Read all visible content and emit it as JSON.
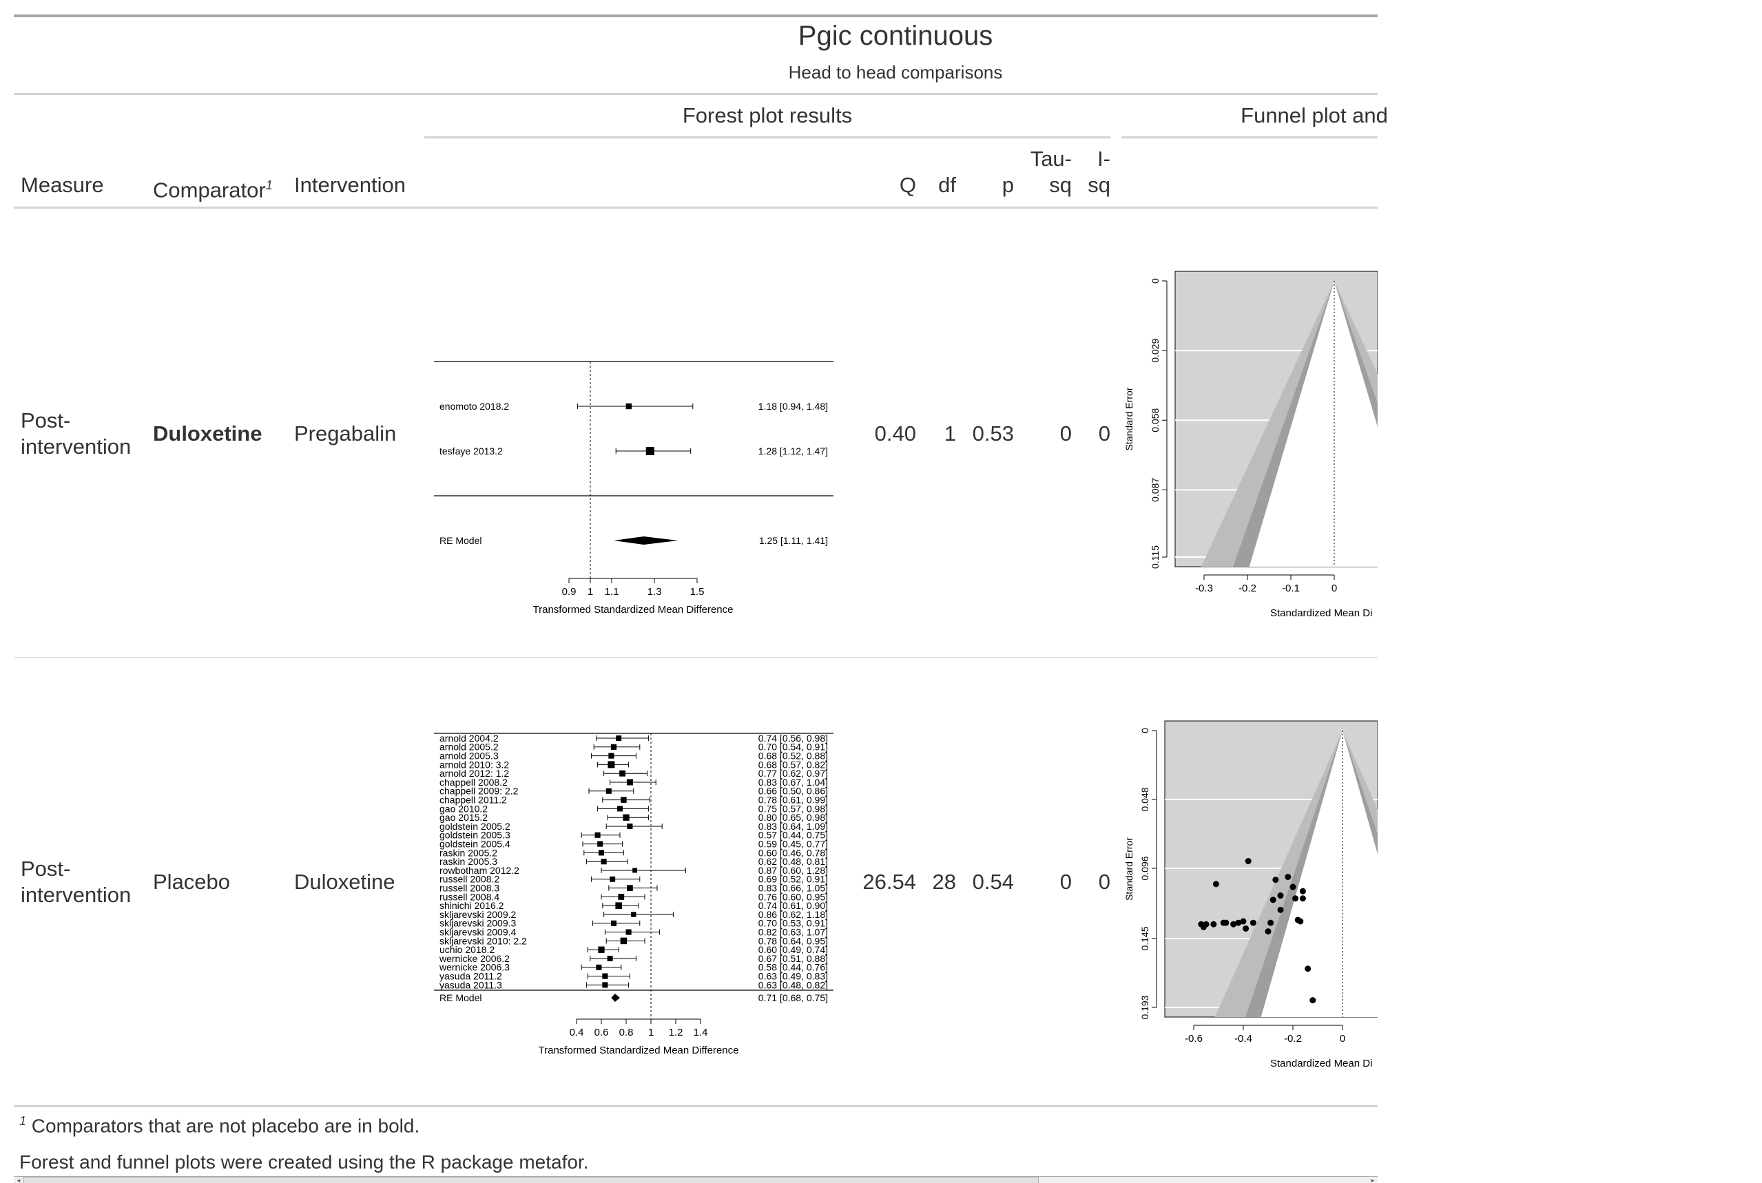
{
  "header": {
    "title": "Pgic continuous",
    "subtitle": "Head to head comparisons",
    "spanner_forest": "Forest plot results",
    "spanner_funnel": "Funnel plot and"
  },
  "columns": {
    "measure": "Measure",
    "comparator": "Comparator",
    "comparator_sup": "1",
    "intervention": "Intervention",
    "q": "Q",
    "df": "df",
    "p": "p",
    "tausq_1": "Tau-",
    "tausq_2": "sq",
    "isq_1": "I-",
    "isq_2": "sq"
  },
  "rows": [
    {
      "measure_1": "Post-",
      "measure_2": "intervention",
      "comparator": "Duloxetine",
      "intervention": "Pregabalin",
      "q": "0.40",
      "df": "1",
      "p": "0.53",
      "tausq": "0",
      "isq": "0"
    },
    {
      "measure_1": "Post-",
      "measure_2": "intervention",
      "comparator": "Placebo",
      "intervention": "Duloxetine",
      "q": "26.54",
      "df": "28",
      "p": "0.54",
      "tausq": "0",
      "isq": "0"
    }
  ],
  "footnotes": {
    "note1_sup": "1",
    "note1": "Comparators that are not placebo are in bold.",
    "note2": "Forest and funnel plots were created using the R package metafor."
  },
  "chart_data": [
    {
      "type": "forest",
      "xlabel": "Transformed Standardized Mean Difference",
      "xticks": [
        "0.9",
        "1",
        "1.1",
        "1.3",
        "1.5"
      ],
      "xlim": [
        0.9,
        1.5
      ],
      "reference_line": 1,
      "studies": [
        {
          "label": "enomoto 2018.2",
          "est": 1.18,
          "lo": 0.94,
          "hi": 1.48,
          "ci_text": "1.18 [0.94, 1.48]"
        },
        {
          "label": "tesfaye 2013.2",
          "est": 1.28,
          "lo": 1.12,
          "hi": 1.47,
          "ci_text": "1.28 [1.12, 1.47]"
        }
      ],
      "summary": {
        "label": "RE Model",
        "est": 1.25,
        "lo": 1.11,
        "hi": 1.41,
        "ci_text": "1.25 [1.11, 1.41]"
      }
    },
    {
      "type": "funnel",
      "ylabel": "Standard Error",
      "xlabel": "Standardized Mean Di",
      "xticks": [
        "-0.3",
        "-0.2",
        "-0.1",
        "0"
      ],
      "yticks": [
        "0",
        "0.029",
        "0.058",
        "0.087",
        "0.115"
      ],
      "center": 0,
      "se_max": 0.115,
      "points": []
    },
    {
      "type": "forest",
      "xlabel": "Transformed Standardized Mean Difference",
      "xticks": [
        "0.4",
        "0.6",
        "0.8",
        "1",
        "1.2",
        "1.4"
      ],
      "xlim": [
        0.4,
        1.4
      ],
      "reference_line": 1,
      "studies": [
        {
          "label": "arnold 2004.2",
          "est": 0.74,
          "lo": 0.56,
          "hi": 0.98,
          "ci_text": "0.74 [0.56, 0.98]"
        },
        {
          "label": "arnold 2005.2",
          "est": 0.7,
          "lo": 0.54,
          "hi": 0.91,
          "ci_text": "0.70 [0.54, 0.91]"
        },
        {
          "label": "arnold 2005.3",
          "est": 0.68,
          "lo": 0.52,
          "hi": 0.88,
          "ci_text": "0.68 [0.52, 0.88]"
        },
        {
          "label": "arnold 2010: 3.2",
          "est": 0.68,
          "lo": 0.57,
          "hi": 0.82,
          "ci_text": "0.68 [0.57, 0.82]"
        },
        {
          "label": "arnold 2012: 1.2",
          "est": 0.77,
          "lo": 0.62,
          "hi": 0.97,
          "ci_text": "0.77 [0.62, 0.97]"
        },
        {
          "label": "chappell 2008.2",
          "est": 0.83,
          "lo": 0.67,
          "hi": 1.04,
          "ci_text": "0.83 [0.67, 1.04]"
        },
        {
          "label": "chappell 2009: 2.2",
          "est": 0.66,
          "lo": 0.5,
          "hi": 0.86,
          "ci_text": "0.66 [0.50, 0.86]"
        },
        {
          "label": "chappell 2011.2",
          "est": 0.78,
          "lo": 0.61,
          "hi": 0.99,
          "ci_text": "0.78 [0.61, 0.99]"
        },
        {
          "label": "gao 2010.2",
          "est": 0.75,
          "lo": 0.57,
          "hi": 0.98,
          "ci_text": "0.75 [0.57, 0.98]"
        },
        {
          "label": "gao 2015.2",
          "est": 0.8,
          "lo": 0.65,
          "hi": 0.98,
          "ci_text": "0.80 [0.65, 0.98]"
        },
        {
          "label": "goldstein 2005.2",
          "est": 0.83,
          "lo": 0.64,
          "hi": 1.09,
          "ci_text": "0.83 [0.64, 1.09]"
        },
        {
          "label": "goldstein 2005.3",
          "est": 0.57,
          "lo": 0.44,
          "hi": 0.75,
          "ci_text": "0.57 [0.44, 0.75]"
        },
        {
          "label": "goldstein 2005.4",
          "est": 0.59,
          "lo": 0.45,
          "hi": 0.77,
          "ci_text": "0.59 [0.45, 0.77]"
        },
        {
          "label": "raskin 2005.2",
          "est": 0.6,
          "lo": 0.46,
          "hi": 0.78,
          "ci_text": "0.60 [0.46, 0.78]"
        },
        {
          "label": "raskin 2005.3",
          "est": 0.62,
          "lo": 0.48,
          "hi": 0.81,
          "ci_text": "0.62 [0.48, 0.81]"
        },
        {
          "label": "rowbotham 2012.2",
          "est": 0.87,
          "lo": 0.6,
          "hi": 1.28,
          "ci_text": "0.87 [0.60, 1.28]"
        },
        {
          "label": "russell 2008.2",
          "est": 0.69,
          "lo": 0.52,
          "hi": 0.91,
          "ci_text": "0.69 [0.52, 0.91]"
        },
        {
          "label": "russell 2008.3",
          "est": 0.83,
          "lo": 0.66,
          "hi": 1.05,
          "ci_text": "0.83 [0.66, 1.05]"
        },
        {
          "label": "russell 2008.4",
          "est": 0.76,
          "lo": 0.6,
          "hi": 0.95,
          "ci_text": "0.76 [0.60, 0.95]"
        },
        {
          "label": "shinichi 2016.2",
          "est": 0.74,
          "lo": 0.61,
          "hi": 0.9,
          "ci_text": "0.74 [0.61, 0.90]"
        },
        {
          "label": "skljarevski 2009.2",
          "est": 0.86,
          "lo": 0.62,
          "hi": 1.18,
          "ci_text": "0.86 [0.62, 1.18]"
        },
        {
          "label": "skljarevski 2009.3",
          "est": 0.7,
          "lo": 0.53,
          "hi": 0.91,
          "ci_text": "0.70 [0.53, 0.91]"
        },
        {
          "label": "skljarevski 2009.4",
          "est": 0.82,
          "lo": 0.63,
          "hi": 1.07,
          "ci_text": "0.82 [0.63, 1.07]"
        },
        {
          "label": "skljarevski 2010: 2.2",
          "est": 0.78,
          "lo": 0.64,
          "hi": 0.95,
          "ci_text": "0.78 [0.64, 0.95]"
        },
        {
          "label": "uchio 2018.2",
          "est": 0.6,
          "lo": 0.49,
          "hi": 0.74,
          "ci_text": "0.60 [0.49, 0.74]"
        },
        {
          "label": "wernicke 2006.2",
          "est": 0.67,
          "lo": 0.51,
          "hi": 0.88,
          "ci_text": "0.67 [0.51, 0.88]"
        },
        {
          "label": "wernicke 2006.3",
          "est": 0.58,
          "lo": 0.44,
          "hi": 0.76,
          "ci_text": "0.58 [0.44, 0.76]"
        },
        {
          "label": "yasuda 2011.2",
          "est": 0.63,
          "lo": 0.49,
          "hi": 0.83,
          "ci_text": "0.63 [0.49, 0.83]"
        },
        {
          "label": "yasuda 2011.3",
          "est": 0.63,
          "lo": 0.48,
          "hi": 0.82,
          "ci_text": "0.63 [0.48, 0.82]"
        }
      ],
      "summary": {
        "label": "RE Model",
        "est": 0.71,
        "lo": 0.68,
        "hi": 0.75,
        "ci_text": "0.71 [0.68, 0.75]"
      }
    },
    {
      "type": "funnel",
      "ylabel": "Standard Error",
      "xlabel": "Standardized Mean Di",
      "xticks": [
        "-0.6",
        "-0.4",
        "-0.2",
        "0"
      ],
      "yticks": [
        "0",
        "0.048",
        "0.096",
        "0.145",
        "0.193"
      ],
      "center": 0,
      "se_max": 0.193,
      "points": [
        {
          "x": -0.57,
          "y": 0.135
        },
        {
          "x": -0.56,
          "y": 0.137
        },
        {
          "x": -0.55,
          "y": 0.135
        },
        {
          "x": -0.52,
          "y": 0.135
        },
        {
          "x": -0.51,
          "y": 0.107
        },
        {
          "x": -0.48,
          "y": 0.134
        },
        {
          "x": -0.47,
          "y": 0.134
        },
        {
          "x": -0.44,
          "y": 0.135
        },
        {
          "x": -0.42,
          "y": 0.134
        },
        {
          "x": -0.4,
          "y": 0.133
        },
        {
          "x": -0.39,
          "y": 0.138
        },
        {
          "x": -0.38,
          "y": 0.091
        },
        {
          "x": -0.36,
          "y": 0.134
        },
        {
          "x": -0.3,
          "y": 0.14
        },
        {
          "x": -0.29,
          "y": 0.134
        },
        {
          "x": -0.28,
          "y": 0.118
        },
        {
          "x": -0.25,
          "y": 0.125
        },
        {
          "x": -0.27,
          "y": 0.104
        },
        {
          "x": -0.22,
          "y": 0.102
        },
        {
          "x": -0.25,
          "y": 0.115
        },
        {
          "x": -0.2,
          "y": 0.109
        },
        {
          "x": -0.19,
          "y": 0.117
        },
        {
          "x": -0.18,
          "y": 0.132
        },
        {
          "x": -0.17,
          "y": 0.133
        },
        {
          "x": -0.16,
          "y": 0.117
        },
        {
          "x": -0.16,
          "y": 0.112
        },
        {
          "x": -0.14,
          "y": 0.166
        },
        {
          "x": -0.12,
          "y": 0.188
        }
      ]
    }
  ]
}
